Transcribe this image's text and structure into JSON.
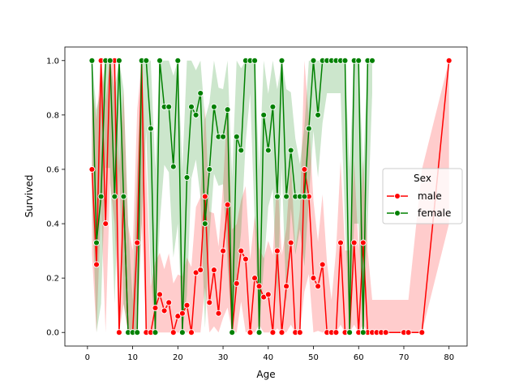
{
  "chart_data": {
    "type": "line",
    "title": "",
    "xlabel": "Age",
    "ylabel": "Survived",
    "xlim": [
      -5,
      84
    ],
    "ylim": [
      -0.05,
      1.05
    ],
    "x_ticks": [
      0,
      10,
      20,
      30,
      40,
      50,
      60,
      70,
      80
    ],
    "y_ticks": [
      0.0,
      0.2,
      0.4,
      0.6,
      0.8,
      1.0
    ],
    "grid": false,
    "legend": {
      "title": "Sex",
      "placement": "center-right"
    },
    "series": [
      {
        "name": "male",
        "color": "#ff0000",
        "band_color": "#ff0000",
        "x": [
          1,
          2,
          3,
          4,
          5,
          6,
          7,
          8,
          9,
          10,
          11,
          12,
          13,
          14,
          15,
          16,
          17,
          18,
          19,
          20,
          21,
          22,
          23,
          24,
          25,
          26,
          27,
          28,
          29,
          30,
          31,
          32,
          33,
          34,
          35,
          36,
          37,
          38,
          39,
          40,
          41,
          42,
          43,
          44,
          45,
          46,
          47,
          48,
          49,
          50,
          51,
          52,
          53,
          54,
          55,
          56,
          57,
          58,
          59,
          60,
          61,
          62,
          63,
          64,
          65,
          66,
          70,
          71,
          74,
          80
        ],
        "y": [
          0.6,
          0.25,
          1.0,
          0.4,
          1.0,
          1.0,
          0.0,
          0.5,
          0.0,
          0.0,
          0.33,
          1.0,
          0.0,
          0.0,
          0.09,
          0.14,
          0.08,
          0.11,
          0.0,
          0.06,
          0.07,
          0.1,
          0.0,
          0.22,
          0.23,
          0.5,
          0.11,
          0.23,
          0.07,
          0.3,
          0.47,
          0.0,
          0.18,
          0.3,
          0.27,
          0.0,
          0.2,
          0.17,
          0.13,
          0.14,
          0.0,
          0.3,
          0.0,
          0.17,
          0.33,
          0.0,
          0.0,
          0.6,
          0.5,
          0.2,
          0.17,
          0.25,
          0.0,
          0.0,
          0.0,
          0.33,
          0.0,
          0.0,
          0.33,
          0.0,
          0.33,
          0.0,
          0.0,
          0.0,
          0.0,
          0.0,
          0.0,
          0.0,
          0.0,
          1.0
        ]
      },
      {
        "name": "female",
        "color": "#008000",
        "band_color": "#008000",
        "x": [
          1,
          2,
          3,
          4,
          5,
          6,
          7,
          8,
          9,
          10,
          11,
          12,
          13,
          14,
          15,
          16,
          17,
          18,
          19,
          20,
          21,
          22,
          23,
          24,
          25,
          26,
          27,
          28,
          29,
          30,
          31,
          32,
          33,
          34,
          35,
          36,
          37,
          38,
          39,
          40,
          41,
          42,
          43,
          44,
          45,
          46,
          47,
          48,
          49,
          50,
          51,
          52,
          53,
          54,
          55,
          56,
          57,
          58,
          59,
          60,
          61,
          62,
          63
        ],
        "y": [
          1.0,
          0.33,
          0.5,
          1.0,
          1.0,
          0.5,
          1.0,
          0.5,
          0.0,
          0.0,
          0.0,
          1.0,
          1.0,
          0.75,
          0.0,
          1.0,
          0.83,
          0.83,
          0.61,
          1.0,
          0.0,
          0.57,
          0.83,
          0.8,
          0.88,
          0.4,
          0.6,
          0.83,
          0.72,
          0.72,
          0.82,
          0.0,
          0.72,
          0.67,
          1.0,
          1.0,
          1.0,
          0.0,
          0.8,
          0.67,
          0.83,
          0.5,
          1.0,
          0.5,
          0.67,
          0.5,
          0.5,
          0.5,
          0.75,
          1.0,
          0.8,
          1.0,
          1.0,
          1.0,
          1.0,
          1.0,
          1.0,
          0.0,
          1.0,
          1.0,
          0.0,
          1.0,
          1.0
        ]
      }
    ]
  }
}
